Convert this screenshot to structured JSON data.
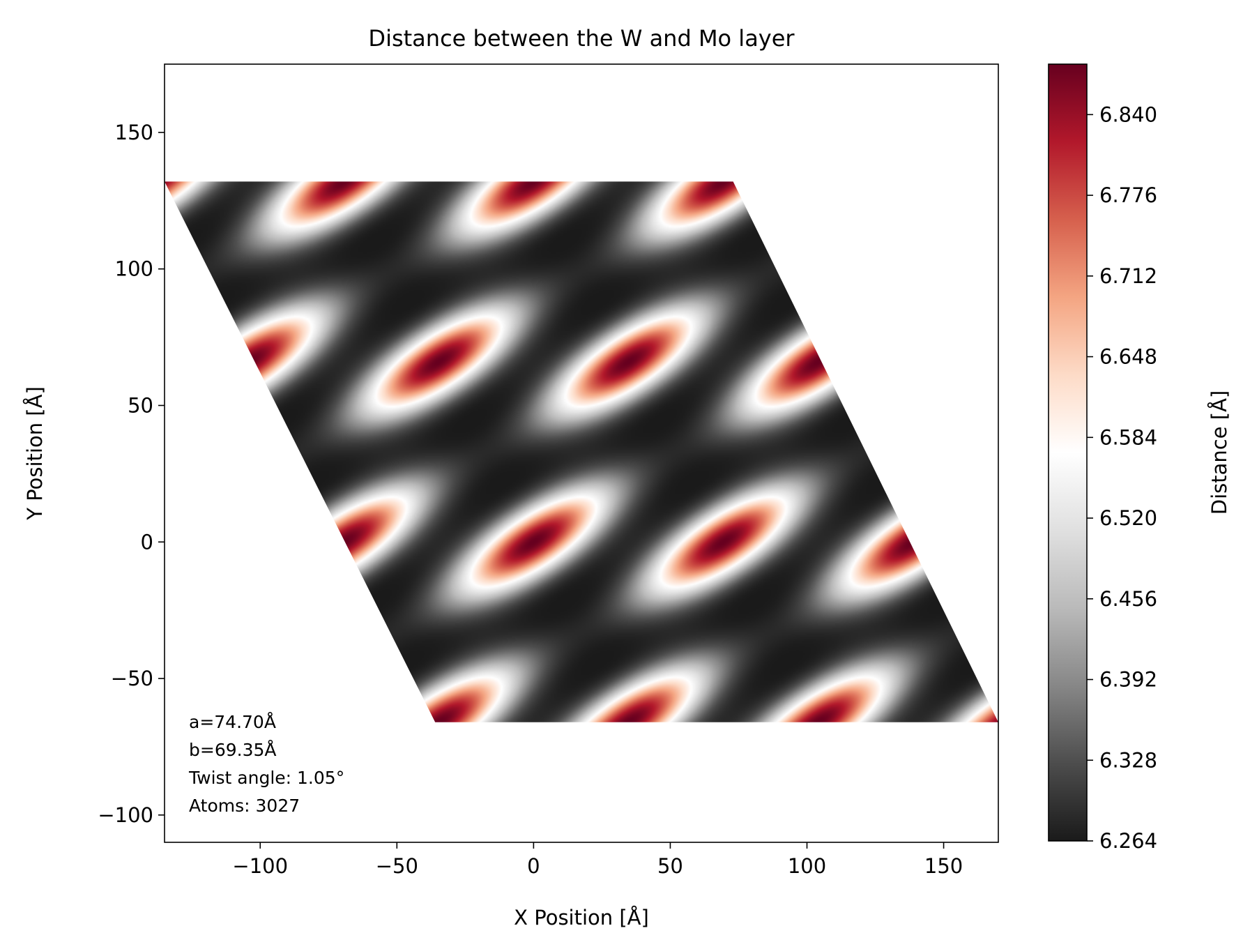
{
  "chart_data": {
    "type": "heatmap",
    "title": "Distance between the W and Mo layer",
    "xlabel": "X Position [Å]",
    "ylabel": "Y Position [Å]",
    "xlim": [
      -135,
      170
    ],
    "ylim": [
      -110,
      175
    ],
    "x_ticks": [
      {
        "value": -100,
        "label": "−100"
      },
      {
        "value": -50,
        "label": "−50"
      },
      {
        "value": 0,
        "label": "0"
      },
      {
        "value": 50,
        "label": "50"
      },
      {
        "value": 100,
        "label": "100"
      },
      {
        "value": 150,
        "label": "150"
      }
    ],
    "y_ticks": [
      {
        "value": -100,
        "label": "−100"
      },
      {
        "value": -50,
        "label": "−50"
      },
      {
        "value": 0,
        "label": "0"
      },
      {
        "value": 50,
        "label": "50"
      },
      {
        "value": 100,
        "label": "100"
      },
      {
        "value": 150,
        "label": "150"
      }
    ],
    "grid": false,
    "region": {
      "shape": "parallelogram",
      "vertices": [
        [
          -135,
          132
        ],
        [
          73,
          132
        ],
        [
          170,
          -66
        ],
        [
          -36,
          -66
        ]
      ]
    },
    "pattern": {
      "lattice_vector_1": [
        69.4,
        0
      ],
      "lattice_vector_2": [
        34.7,
        66
      ],
      "origin": [
        0,
        0
      ],
      "min_value": 6.264,
      "max_value": 6.88
    },
    "colorbar": {
      "label": "Distance [Å]",
      "min": 6.264,
      "max": 6.88,
      "colormap": "RdGy_r",
      "colors": [
        "#1a1a1a",
        "#4d4d4d",
        "#878787",
        "#bababa",
        "#e0e0e0",
        "#ffffff",
        "#fddbc7",
        "#f4a582",
        "#d6604d",
        "#b2182b",
        "#67001f"
      ],
      "ticks": [
        6.264,
        6.328,
        6.392,
        6.456,
        6.52,
        6.584,
        6.648,
        6.712,
        6.776,
        6.84
      ],
      "tick_labels": [
        "6.264",
        "6.328",
        "6.392",
        "6.456",
        "6.520",
        "6.584",
        "6.648",
        "6.712",
        "6.776",
        "6.840"
      ]
    },
    "annotation": {
      "lines": [
        "a=74.70Å",
        "b=69.35Å",
        "Twist angle: 1.05°",
        "Atoms: 3027"
      ]
    }
  }
}
